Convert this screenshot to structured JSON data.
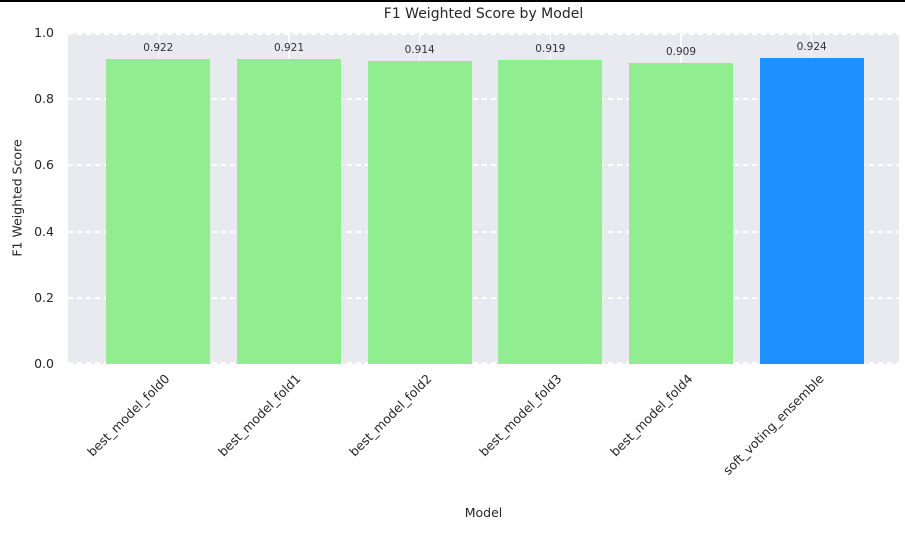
{
  "chart_data": {
    "type": "bar",
    "title": "F1 Weighted Score by Model",
    "xlabel": "Model",
    "ylabel": "F1 Weighted Score",
    "categories": [
      "best_model_fold0",
      "best_model_fold1",
      "best_model_fold2",
      "best_model_fold3",
      "best_model_fold4",
      "soft_voting_ensemble"
    ],
    "values": [
      0.922,
      0.921,
      0.914,
      0.919,
      0.909,
      0.924
    ],
    "value_labels": [
      "0.922",
      "0.921",
      "0.914",
      "0.919",
      "0.909",
      "0.924"
    ],
    "bar_colors": [
      "#90EE90",
      "#90EE90",
      "#90EE90",
      "#90EE90",
      "#90EE90",
      "#1E90FF"
    ],
    "ylim": [
      0.0,
      1.0
    ],
    "yticks": [
      "0.0",
      "0.2",
      "0.4",
      "0.6",
      "0.8",
      "1.0"
    ],
    "grid": true,
    "x_tick_rotation": 45,
    "plot_background": "#e9e9f0",
    "grid_color": "#ffffff",
    "legend": null
  }
}
